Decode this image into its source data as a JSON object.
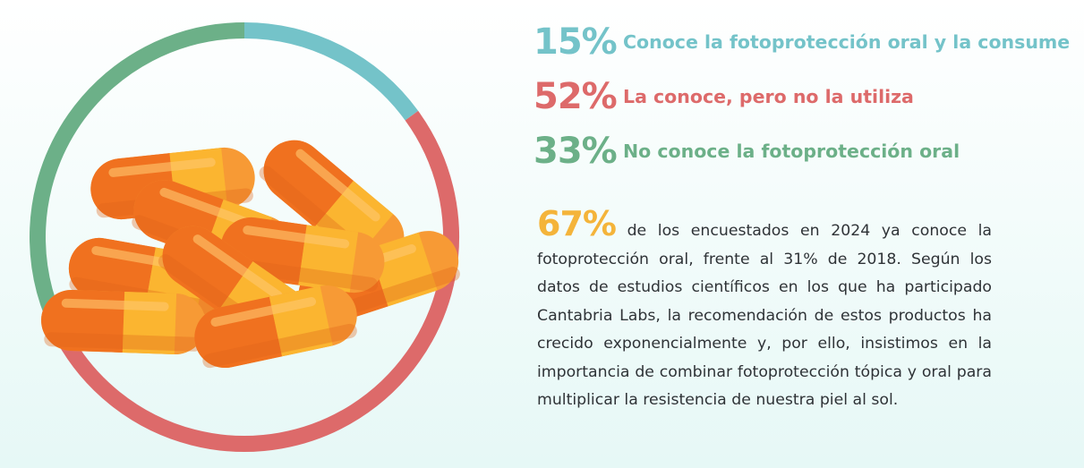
{
  "chart_data": {
    "type": "pie",
    "categories": [
      "Conoce la fotoprotección oral y la consume",
      "La conoce, pero no la utiliza",
      "No conoce la fotoprotección oral"
    ],
    "values": [
      15,
      52,
      33
    ],
    "colors": [
      "#74c3c9",
      "#dd6a6a",
      "#6cb088"
    ],
    "style": "donut ring",
    "labels": [
      "15%",
      "52%",
      "33%"
    ]
  },
  "stats": [
    {
      "pct": "15%",
      "label": "Conoce la fotoprotección oral y la consume",
      "color": "#74c3c9"
    },
    {
      "pct": "52%",
      "label": "La conoce, pero no la utiliza",
      "color": "#dd6a6a"
    },
    {
      "pct": "33%",
      "label": "No conoce la fotoprotección oral",
      "color": "#6cb088"
    }
  ],
  "paragraph": {
    "highlight": "67%",
    "highlight_color": "#f4b43a",
    "text": " de los encuestados en 2024 ya conoce la fotoprotección oral, frente al 31% de 2018. Según los datos de estudios científicos en los que ha participado Cantabria Labs, la recomendación de estos productos ha crecido exponencialmente y, por ello, insistimos en la importancia de combinar fotoprotección tópica y oral para multiplicar la resistencia de nuestra piel al sol."
  },
  "illustration": {
    "name": "orange-capsules-icon"
  }
}
